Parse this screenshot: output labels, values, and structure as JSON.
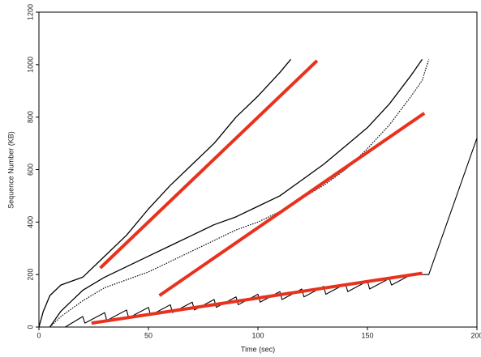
{
  "chart_data": {
    "type": "line",
    "xlabel": "Time (sec)",
    "ylabel": "Sequence Number (KB)",
    "xlim": [
      0,
      200
    ],
    "ylim": [
      0,
      1200
    ],
    "xticks": [
      0,
      50,
      100,
      150,
      200
    ],
    "yticks": [
      0,
      200,
      400,
      600,
      800,
      1000,
      1200
    ],
    "series": [
      {
        "color": "#000000",
        "style": "solid",
        "width": 1.3,
        "x": [
          0,
          2,
          5,
          10,
          20,
          30,
          40,
          50,
          60,
          70,
          80,
          90,
          100,
          110,
          115
        ],
        "values": [
          0,
          60,
          120,
          160,
          190,
          270,
          350,
          450,
          540,
          620,
          700,
          800,
          880,
          970,
          1020
        ]
      },
      {
        "color": "#000000",
        "style": "solid",
        "width": 1.3,
        "x": [
          5,
          10,
          15,
          20,
          30,
          40,
          50,
          60,
          70,
          80,
          90,
          100,
          110,
          120,
          130,
          140,
          150,
          160,
          170,
          175
        ],
        "values": [
          0,
          60,
          100,
          140,
          190,
          230,
          270,
          310,
          350,
          390,
          420,
          460,
          500,
          560,
          620,
          690,
          760,
          850,
          960,
          1020
        ]
      },
      {
        "color": "#000000",
        "style": "dotted",
        "width": 1.2,
        "x": [
          5,
          10,
          20,
          30,
          40,
          50,
          60,
          70,
          80,
          90,
          100,
          110,
          120,
          130,
          140,
          150,
          160,
          170,
          175,
          178
        ],
        "values": [
          0,
          40,
          100,
          150,
          180,
          210,
          250,
          290,
          330,
          370,
          400,
          440,
          490,
          540,
          600,
          680,
          770,
          880,
          940,
          1020
        ]
      },
      {
        "color": "#000000",
        "style": "solid",
        "width": 1.1,
        "x": [
          12,
          20,
          21,
          30,
          31,
          40,
          41,
          50,
          51,
          60,
          61,
          70,
          71,
          80,
          81,
          90,
          91,
          100,
          101,
          110,
          111,
          120,
          121,
          130,
          131,
          140,
          141,
          150,
          151,
          160,
          161,
          170,
          178,
          200
        ],
        "values": [
          0,
          40,
          15,
          55,
          25,
          65,
          35,
          75,
          45,
          85,
          55,
          95,
          65,
          105,
          75,
          115,
          85,
          125,
          95,
          135,
          105,
          145,
          115,
          155,
          125,
          165,
          135,
          175,
          145,
          185,
          160,
          200,
          200,
          720
        ]
      },
      {
        "color": "#e8321e",
        "style": "solid",
        "width": 4,
        "x": [
          28,
          127
        ],
        "values": [
          225,
          1015
        ]
      },
      {
        "color": "#e8321e",
        "style": "solid",
        "width": 4,
        "x": [
          55,
          176
        ],
        "values": [
          120,
          815
        ]
      },
      {
        "color": "#e8321e",
        "style": "solid",
        "width": 4,
        "x": [
          24,
          175
        ],
        "values": [
          15,
          205
        ]
      }
    ]
  }
}
